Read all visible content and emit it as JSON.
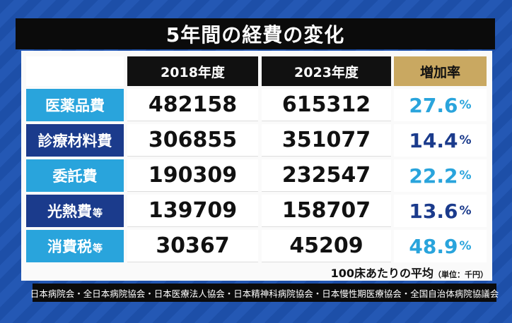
{
  "header": {
    "title": "5年間の経費の変化"
  },
  "table": {
    "columns": [
      "2018年度",
      "2023年度",
      "増加率"
    ],
    "rate_unit": "%",
    "rows": [
      {
        "label": "医薬品費",
        "y2018": 482158,
        "y2023": 615312,
        "rate": 27.6
      },
      {
        "label": "診療材料費",
        "y2018": 306855,
        "y2023": 351077,
        "rate": 14.4
      },
      {
        "label": "委託費",
        "y2018": 190309,
        "y2023": 232547,
        "rate": 22.2
      },
      {
        "label": "光熱費",
        "suffix": "等",
        "y2018": 139709,
        "y2023": 158707,
        "rate": 13.6
      },
      {
        "label": "消費税",
        "suffix": "等",
        "y2018": 30367,
        "y2023": 45209,
        "rate": 48.9
      }
    ]
  },
  "note": {
    "text": "100床あたりの平均",
    "unit": "（単位：千円）"
  },
  "footer": {
    "source": "日本病院会・全日本病院協会・日本医療法人協会・日本精神科病院協会・日本慢性期医療協会・全国自治体病院協議会"
  }
}
